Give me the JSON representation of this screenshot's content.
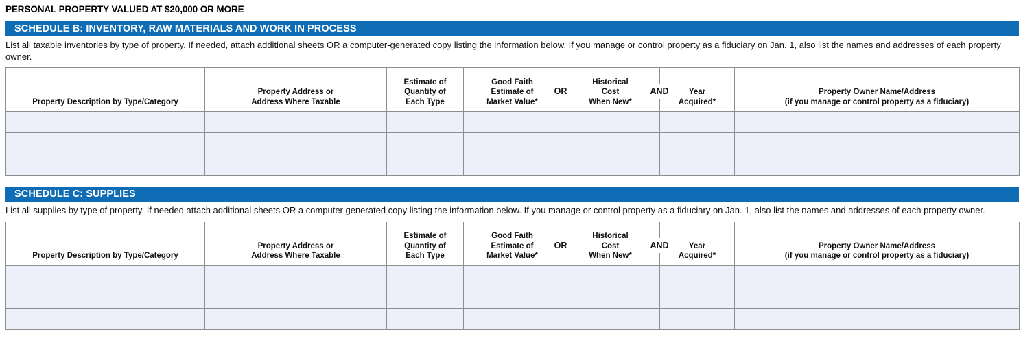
{
  "page": {
    "title": "PERSONAL PROPERTY VALUED AT $20,000 OR MORE"
  },
  "colors": {
    "header_bar_blue": "#0e6db5",
    "row_fill": "#edf0fa",
    "border_gray": "#8e8e8e"
  },
  "schedules": [
    {
      "bar_title": "SCHEDULE B: INVENTORY, RAW MATERIALS AND WORK IN PROCESS",
      "instructions": "List all taxable inventories by type of property. If needed, attach additional sheets OR a computer-generated copy listing the information below. If you manage or control property as a fiduciary on Jan. 1, also list the names and addresses of each property owner."
    },
    {
      "bar_title": "SCHEDULE C: SUPPLIES",
      "instructions": "List all supplies by type of property. If needed attach additional sheets OR a computer generated copy listing the information below. If you manage or control property as a fiduciary on Jan. 1, also list the names and addresses of each property owner."
    }
  ],
  "table": {
    "or_label": "OR",
    "and_label": "AND",
    "columns": [
      {
        "label": "Property Description by Type/Category"
      },
      {
        "label": "Property Address or\nAddress Where Taxable"
      },
      {
        "label": "Estimate of\nQuantity of\nEach Type"
      },
      {
        "label": "Good Faith\nEstimate of\nMarket Value*"
      },
      {
        "label": "Historical\nCost\nWhen New*"
      },
      {
        "label": "Year\nAcquired*"
      },
      {
        "label": "Property Owner Name/Address\n(if you manage or control property as a fiduciary)"
      }
    ],
    "rows": [
      [
        "",
        "",
        "",
        "",
        "",
        "",
        ""
      ],
      [
        "",
        "",
        "",
        "",
        "",
        "",
        ""
      ],
      [
        "",
        "",
        "",
        "",
        "",
        "",
        ""
      ]
    ]
  }
}
